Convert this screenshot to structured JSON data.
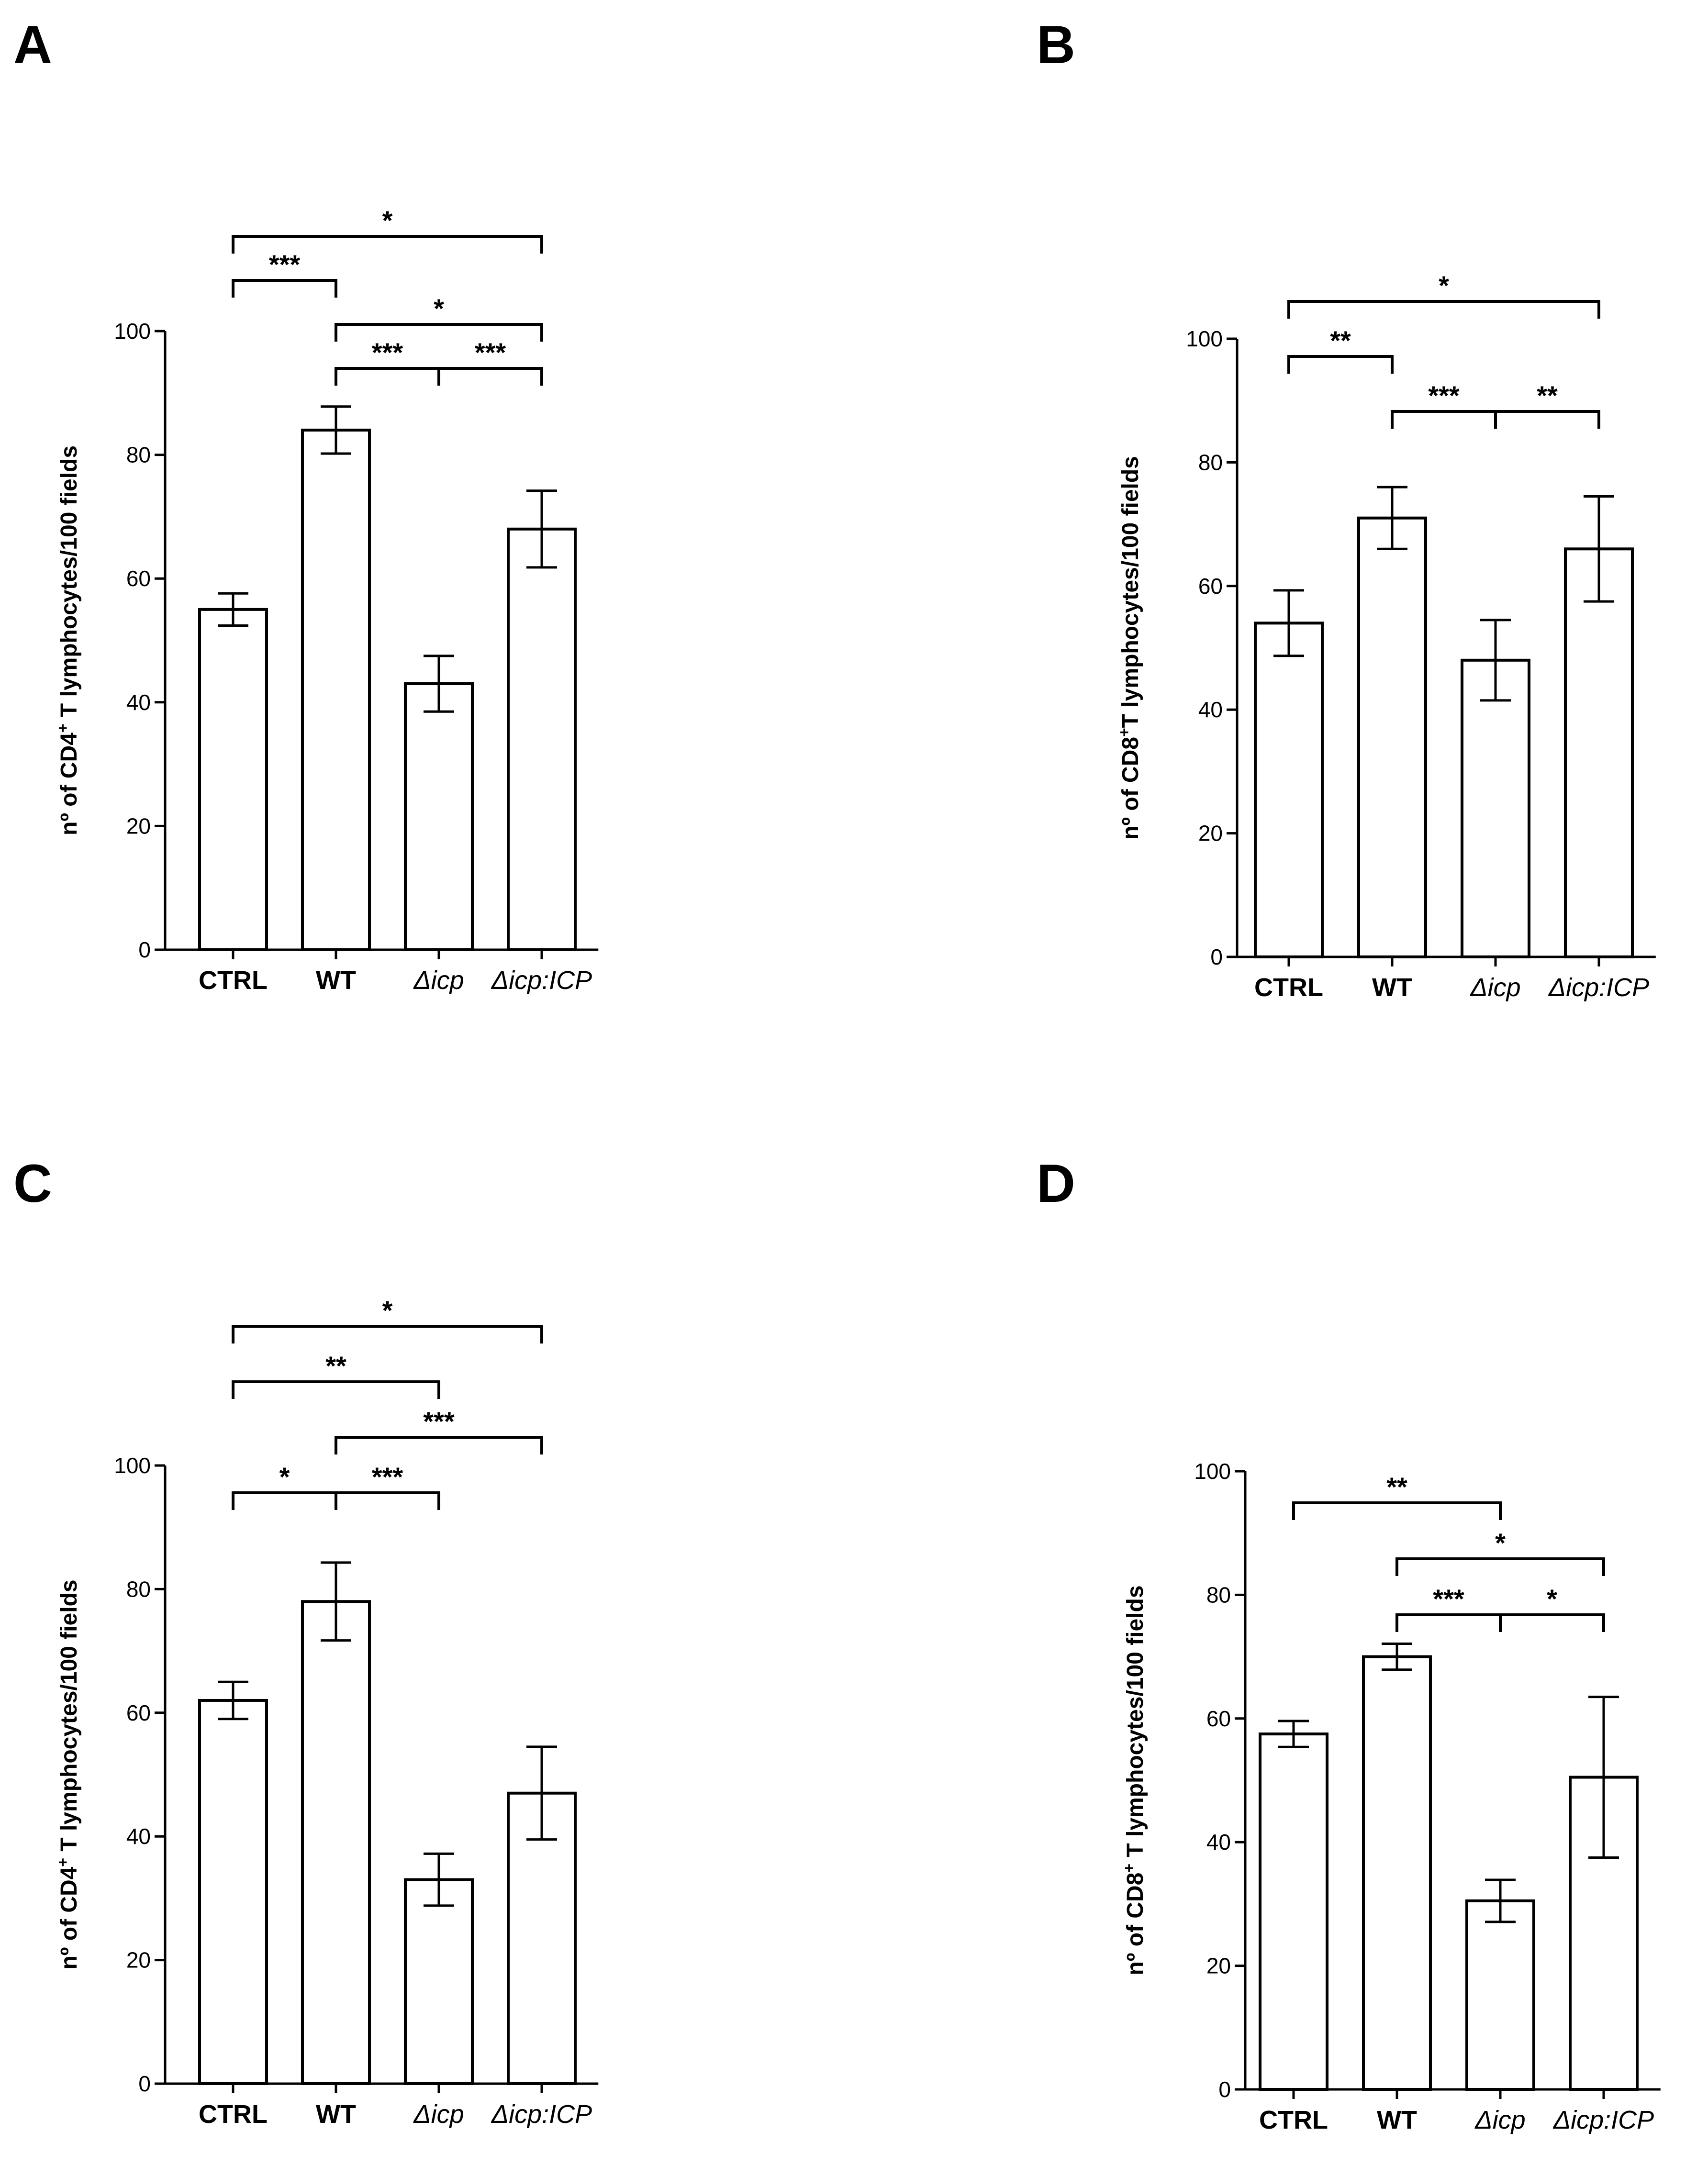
{
  "colors": {
    "ink": "#000000",
    "fill": "#ffffff",
    "background": "#ffffff"
  },
  "chart_data": [
    {
      "panel": "A",
      "type": "bar",
      "categories": [
        "CTRL",
        "WT",
        "Δicp",
        "Δicp:ICP"
      ],
      "category_italic": [
        false,
        false,
        true,
        true
      ],
      "values": [
        55,
        84,
        43,
        68
      ],
      "errors": [
        2.6,
        3.8,
        4.5,
        6.2
      ],
      "ylabel_prefix": "nº of  CD4",
      "ylabel_sup": "+",
      "ylabel_suffix": " T lymphocytes/100 fields",
      "ylim": [
        0,
        100
      ],
      "yticks": [
        "0",
        "20",
        "40",
        "60",
        "80",
        "100"
      ],
      "significance": [
        {
          "from": 0,
          "to": 3,
          "label": "*",
          "level": 3
        },
        {
          "from": 0,
          "to": 1,
          "label": "***",
          "level": 2
        },
        {
          "from": 1,
          "to": 3,
          "label": "*",
          "level": 1
        },
        {
          "from": 1,
          "to": 3,
          "mid": 2,
          "labels": [
            "***",
            "***"
          ],
          "level": 0
        }
      ]
    },
    {
      "panel": "B",
      "type": "bar",
      "categories": [
        "CTRL",
        "WT",
        "Δicp",
        "Δicp:ICP"
      ],
      "category_italic": [
        false,
        false,
        true,
        true
      ],
      "values": [
        54,
        71,
        48,
        66
      ],
      "errors": [
        5.3,
        5.0,
        6.5,
        8.5
      ],
      "ylabel_prefix": "nº of CD8",
      "ylabel_sup": "+",
      "ylabel_suffix": "T lymphocytes/100 fields",
      "ylim": [
        0,
        100
      ],
      "yticks": [
        "0",
        "20",
        "40",
        "60",
        "80",
        "100"
      ],
      "significance": [
        {
          "from": 0,
          "to": 3,
          "label": "*",
          "level": 2
        },
        {
          "from": 0,
          "to": 1,
          "label": "**",
          "level": 1
        },
        {
          "from": 1,
          "to": 3,
          "mid": 2,
          "labels": [
            "***",
            "**"
          ],
          "level": 0
        }
      ]
    },
    {
      "panel": "C",
      "type": "bar",
      "categories": [
        "CTRL",
        "WT",
        "Δicp",
        "Δicp:ICP"
      ],
      "category_italic": [
        false,
        false,
        true,
        true
      ],
      "values": [
        62,
        78,
        33,
        47
      ],
      "errors": [
        3.0,
        6.3,
        4.2,
        7.5
      ],
      "ylabel_prefix": "nº of  CD4",
      "ylabel_sup": "+",
      "ylabel_suffix": " T lymphocytes/100 fields",
      "ylim": [
        0,
        100
      ],
      "yticks": [
        "0",
        "20",
        "40",
        "60",
        "80",
        "100"
      ],
      "significance": [
        {
          "from": 0,
          "to": 3,
          "label": "*",
          "level": 3
        },
        {
          "from": 0,
          "to": 2,
          "label": "**",
          "level": 2
        },
        {
          "from": 1,
          "to": 3,
          "label": "***",
          "level": 1
        },
        {
          "from": 0,
          "to": 2,
          "mid": 1,
          "labels": [
            "*",
            "***"
          ],
          "level": 0
        }
      ]
    },
    {
      "panel": "D",
      "type": "bar",
      "categories": [
        "CTRL",
        "WT",
        "Δicp",
        "Δicp:ICP"
      ],
      "category_italic": [
        false,
        false,
        true,
        true
      ],
      "values": [
        57.5,
        70,
        30.5,
        50.5
      ],
      "errors": [
        2.1,
        2.1,
        3.4,
        13.0
      ],
      "ylabel_prefix": "nº of CD8",
      "ylabel_sup": "+",
      "ylabel_suffix": " T lymphocytes/100 fields",
      "ylim": [
        0,
        100
      ],
      "yticks": [
        "0",
        "20",
        "40",
        "60",
        "80",
        "100"
      ],
      "significance": [
        {
          "from": 0,
          "to": 2,
          "label": "**",
          "level": 2
        },
        {
          "from": 1,
          "to": 3,
          "label": "*",
          "level": 1
        },
        {
          "from": 1,
          "to": 3,
          "mid": 2,
          "labels": [
            "***",
            "*"
          ],
          "level": 0
        }
      ]
    }
  ]
}
